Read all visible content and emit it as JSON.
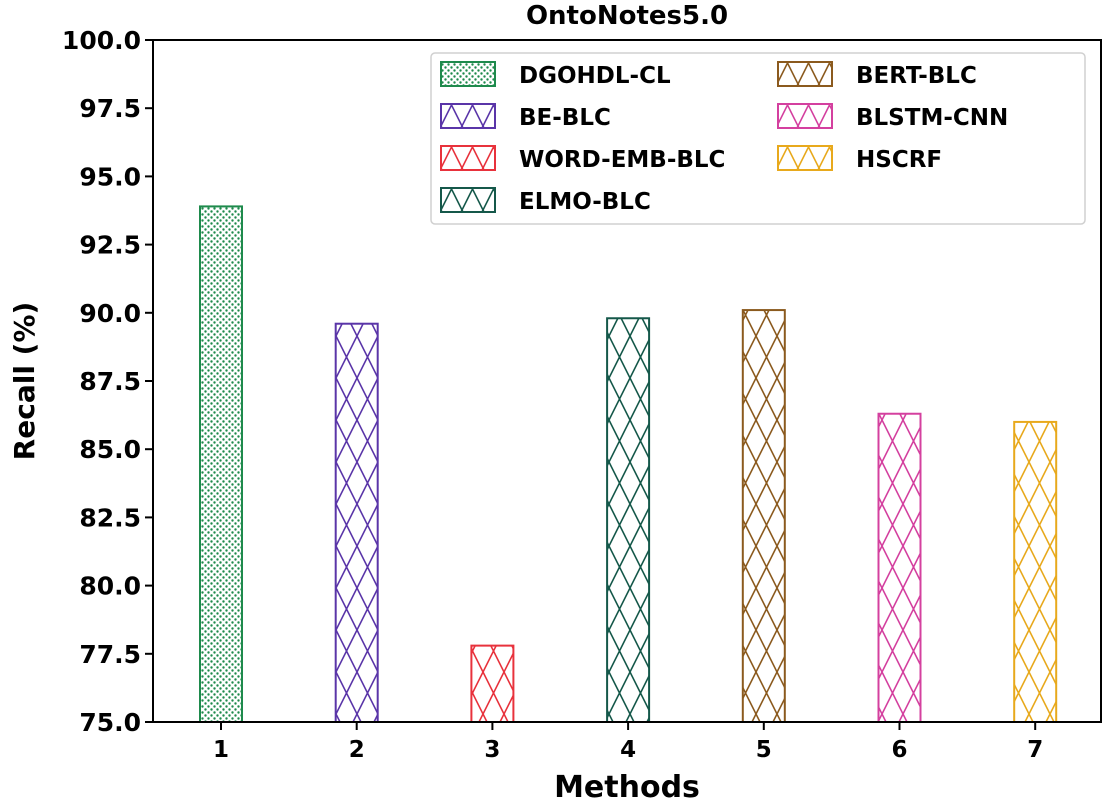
{
  "chart_data": {
    "type": "bar",
    "title": "OntoNotes5.0",
    "xlabel": "Methods",
    "ylabel": "Recall (%)",
    "ylim": [
      75.0,
      100.0
    ],
    "yticks": [
      "75.0",
      "77.5",
      "80.0",
      "82.5",
      "85.0",
      "87.5",
      "90.0",
      "92.5",
      "95.0",
      "97.5",
      "100.0"
    ],
    "categories": [
      "1",
      "2",
      "3",
      "4",
      "5",
      "6",
      "7"
    ],
    "series": [
      {
        "name": "DGOHDL-CL",
        "values": [
          93.9,
          null,
          null,
          null,
          null,
          null,
          null
        ],
        "color": "#1e8a4c",
        "pattern": "dots"
      },
      {
        "name": "BE-BLC",
        "values": [
          null,
          89.6,
          null,
          null,
          null,
          null,
          null
        ],
        "color": "#5a35a8",
        "pattern": "cross"
      },
      {
        "name": "WORD-EMB-BLC",
        "values": [
          null,
          null,
          77.8,
          null,
          null,
          null,
          null
        ],
        "color": "#e8323c",
        "pattern": "cross"
      },
      {
        "name": "ELMO-BLC",
        "values": [
          null,
          null,
          null,
          89.8,
          null,
          null,
          null
        ],
        "color": "#15584a",
        "pattern": "cross"
      },
      {
        "name": "BERT-BLC",
        "values": [
          null,
          null,
          null,
          null,
          90.1,
          null,
          null
        ],
        "color": "#8b5a1e",
        "pattern": "cross"
      },
      {
        "name": "BLSTM-CNN",
        "values": [
          null,
          null,
          null,
          null,
          null,
          86.3,
          null
        ],
        "color": "#d4409f",
        "pattern": "cross"
      },
      {
        "name": "HSCRF",
        "values": [
          null,
          null,
          null,
          null,
          null,
          null,
          86.0
        ],
        "color": "#e8a91c",
        "pattern": "cross"
      }
    ],
    "legend": {
      "position": "top-right",
      "columns": 2
    },
    "grid": false
  }
}
